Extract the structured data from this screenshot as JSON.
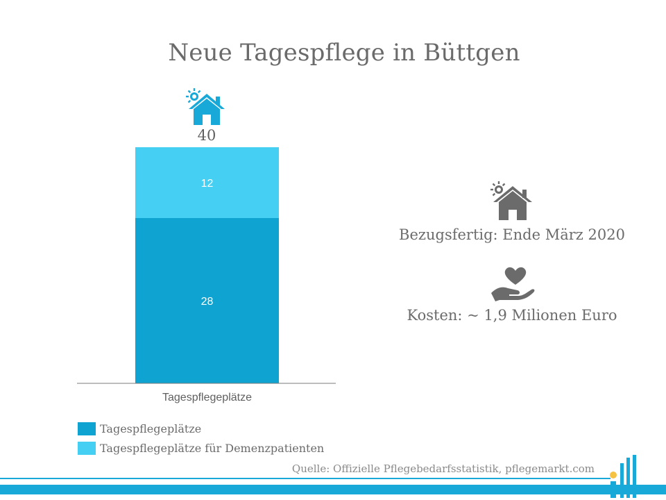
{
  "title": "Neue Tagespflege in Büttgen",
  "chart_data": {
    "type": "bar",
    "stacked": true,
    "categories": [
      "Tagespflegeplätze"
    ],
    "series": [
      {
        "name": "Tagespflegeplätze",
        "values": [
          28
        ],
        "color": "#0fa3d1"
      },
      {
        "name": "Tagespflegeplätze für Demenzpatienten",
        "values": [
          12
        ],
        "color": "#45d0f3"
      }
    ],
    "total_labels": [
      "40"
    ],
    "ylim": [
      0,
      40
    ],
    "grid": false,
    "legend_position": "bottom-left",
    "icon": "house-sun-icon"
  },
  "info": {
    "ready_icon": "house-sun-icon",
    "ready_text": "Bezugsfertig: Ende März 2020",
    "cost_icon": "heart-hand-icon",
    "cost_text": "Kosten: ~ 1,9 Milionen Euro"
  },
  "legend": [
    {
      "label": "Tagespflegeplätze",
      "color": "#0fa3d1"
    },
    {
      "label": "Tagespflegeplätze für Demenzpatienten",
      "color": "#45d0f3"
    }
  ],
  "source": "Quelle: Offizielle Pflegebedarfsstatistik, pflegemarkt.com",
  "colors": {
    "primary": "#0fa3d1",
    "light": "#45d0f3",
    "icon_grey": "#6b6b6b",
    "accent_yellow": "#f5c242"
  }
}
